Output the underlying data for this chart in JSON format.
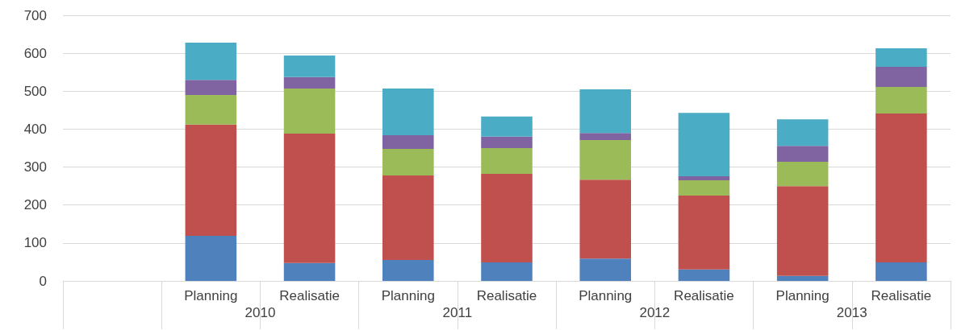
{
  "chart_data": {
    "type": "bar",
    "stacked": true,
    "categories": [
      null,
      "Planning",
      "Realisatie",
      "Planning",
      "Realisatie",
      "Planning",
      "Realisatie",
      "Planning",
      "Realisatie"
    ],
    "series": [
      {
        "color": "#4f81bd",
        "values": [
          null,
          119,
          47,
          55,
          49,
          59,
          30,
          13,
          49
        ]
      },
      {
        "color": "#c0504d",
        "values": [
          null,
          293,
          341,
          223,
          233,
          208,
          195,
          237,
          392
        ]
      },
      {
        "color": "#9bbb59",
        "values": [
          null,
          78,
          119,
          70,
          68,
          104,
          40,
          64,
          70
        ]
      },
      {
        "color": "#8064a2",
        "values": [
          null,
          40,
          30,
          36,
          30,
          19,
          11,
          42,
          53
        ]
      },
      {
        "color": "#4bacc6",
        "values": [
          null,
          98,
          57,
          123,
          53,
          115,
          167,
          70,
          49
        ]
      }
    ],
    "annotations": [
      "2010",
      "2011",
      "2012",
      "2013"
    ],
    "ylim": [
      0,
      700
    ],
    "yticks": [
      0,
      100,
      200,
      300,
      400,
      500,
      600,
      700
    ],
    "grid": "y"
  }
}
